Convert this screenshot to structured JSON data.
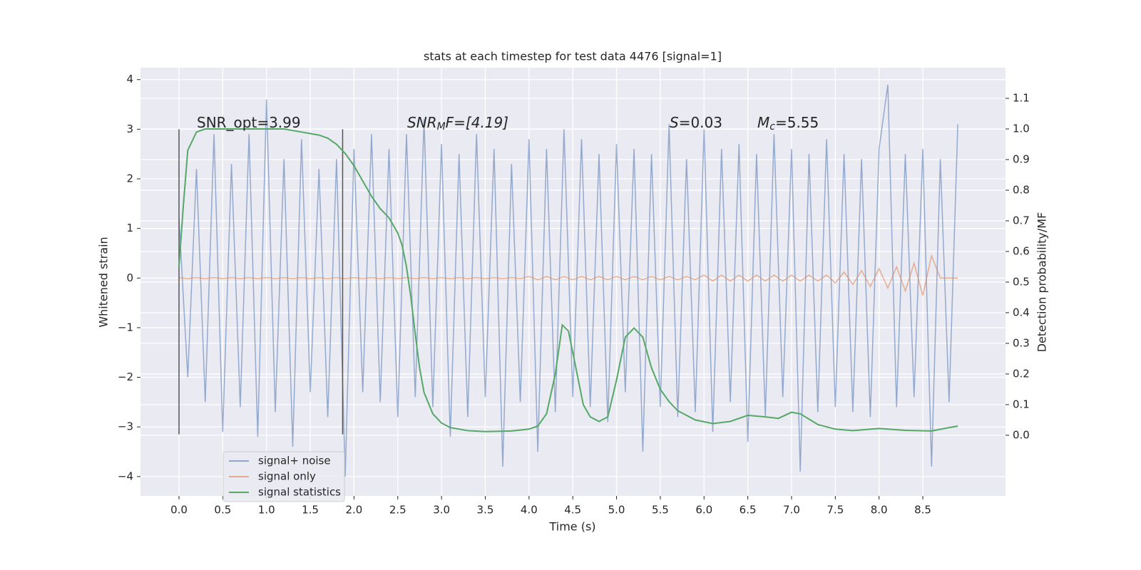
{
  "chart_data": {
    "type": "line",
    "title": "stats at each timestep for test data 4476 [signal=1]",
    "xlabel": "Time (s)",
    "ylabel": "Whitened strain",
    "y2label": "Detection probability/MF",
    "xlim": [
      -0.44,
      9.445
    ],
    "ylim": [
      -4.39,
      4.24
    ],
    "y2lim": [
      -0.198,
      1.2
    ],
    "xticks": [
      {
        "value": 0,
        "label": "0.0"
      },
      {
        "value": 0.5,
        "label": "0.5"
      },
      {
        "value": 1,
        "label": "1.0"
      },
      {
        "value": 1.5,
        "label": "1.5"
      },
      {
        "value": 2,
        "label": "2.0"
      },
      {
        "value": 2.5,
        "label": "2.5"
      },
      {
        "value": 3,
        "label": "3.0"
      },
      {
        "value": 3.5,
        "label": "3.5"
      },
      {
        "value": 4,
        "label": "4.0"
      },
      {
        "value": 4.5,
        "label": "4.5"
      },
      {
        "value": 5,
        "label": "5.0"
      },
      {
        "value": 5.5,
        "label": "5.5"
      },
      {
        "value": 6,
        "label": "6.0"
      },
      {
        "value": 6.5,
        "label": "6.5"
      },
      {
        "value": 7,
        "label": "7.0"
      },
      {
        "value": 7.5,
        "label": "7.5"
      },
      {
        "value": 8,
        "label": "8.0"
      },
      {
        "value": 8.5,
        "label": "8.5"
      }
    ],
    "yticks": [
      {
        "value": -4,
        "label": "−4"
      },
      {
        "value": -3,
        "label": "−3"
      },
      {
        "value": -2,
        "label": "−2"
      },
      {
        "value": -1,
        "label": "−1"
      },
      0,
      1,
      2,
      3,
      4
    ],
    "y2ticks": [
      {
        "value": 0,
        "label": "0.0"
      },
      {
        "value": 0.1,
        "label": "0.1"
      },
      {
        "value": 0.2,
        "label": "0.2"
      },
      {
        "value": 0.3,
        "label": "0.3"
      },
      {
        "value": 0.4,
        "label": "0.4"
      },
      {
        "value": 0.5,
        "label": "0.5"
      },
      {
        "value": 0.6,
        "label": "0.6"
      },
      {
        "value": 0.7,
        "label": "0.7"
      },
      {
        "value": 0.8,
        "label": "0.8"
      },
      {
        "value": 0.9,
        "label": "0.9"
      },
      {
        "value": 1,
        "label": "1.0"
      },
      {
        "value": 1.1,
        "label": "1.1"
      }
    ],
    "grid": true,
    "legend": "lower left",
    "vlines": [
      0,
      1.87
    ],
    "annotations": [
      [
        "SNR_opt=3.99"
      ],
      [
        "SNR",
        "M",
        "F=[4.19]"
      ],
      [
        "S",
        "=0.03"
      ],
      [
        "M",
        "c",
        "=5.55"
      ]
    ],
    "x": [
      0,
      0.1,
      0.2,
      0.3,
      0.4,
      0.5,
      0.6,
      0.7,
      0.8,
      0.9,
      1,
      1.1,
      1.2,
      1.3,
      1.4,
      1.5,
      1.6,
      1.7,
      1.8,
      1.9,
      2,
      2.1,
      2.2,
      2.3,
      2.4,
      2.5,
      2.6,
      2.7,
      2.8,
      2.9,
      3,
      3.1,
      3.2,
      3.3,
      3.4,
      3.5,
      3.6,
      3.7,
      3.8,
      3.9,
      4,
      4.1,
      4.2,
      4.3,
      4.4,
      4.5,
      4.6,
      4.7,
      4.8,
      4.9,
      5,
      5.1,
      5.2,
      5.3,
      5.4,
      5.5,
      5.6,
      5.7,
      5.8,
      5.9,
      6,
      6.1,
      6.2,
      6.3,
      6.4,
      6.5,
      6.6,
      6.7,
      6.8,
      6.9,
      7,
      7.1,
      7.2,
      7.3,
      7.4,
      7.5,
      7.6,
      7.7,
      7.8,
      7.9,
      8,
      8.1,
      8.2,
      8.3,
      8.4,
      8.5,
      8.6,
      8.7,
      8.8,
      8.9
    ],
    "series": [
      {
        "name": "signal+ noise",
        "color": "#4c72b0",
        "values": [
          1.2,
          -2.0,
          2.2,
          -2.5,
          2.9,
          -3.1,
          2.3,
          -2.6,
          2.9,
          -3.2,
          3.6,
          -2.7,
          2.4,
          -3.4,
          2.8,
          -2.3,
          2.2,
          -2.8,
          2.4,
          -4.0,
          2.6,
          -2.3,
          2.9,
          -2.5,
          2.6,
          -2.8,
          2.9,
          -2.4,
          3.2,
          -2.6,
          2.7,
          -3.2,
          2.5,
          -2.8,
          2.9,
          -2.4,
          2.6,
          -3.8,
          2.3,
          -2.5,
          2.8,
          -3.5,
          2.6,
          -2.7,
          3.0,
          -2.4,
          2.8,
          -2.6,
          2.5,
          -2.9,
          2.7,
          -2.3,
          2.6,
          -3.5,
          2.5,
          -2.6,
          3.1,
          -2.8,
          2.4,
          -2.7,
          3.0,
          -3.1,
          2.6,
          -2.5,
          2.7,
          -3.3,
          2.5,
          -2.8,
          2.9,
          -2.4,
          2.6,
          -3.9,
          2.5,
          -2.7,
          2.8,
          -2.6,
          2.5,
          -2.7,
          2.4,
          -2.8,
          2.6,
          3.9,
          -2.6,
          2.5,
          -2.4,
          2.6,
          -3.8,
          2.4,
          -2.5,
          3.1
        ]
      },
      {
        "name": "signal only",
        "color": "#dd8452",
        "values": [
          0.01,
          -0.01,
          0.01,
          -0.01,
          0.01,
          -0.01,
          0.01,
          -0.01,
          0.01,
          -0.01,
          0.01,
          -0.01,
          0.01,
          -0.01,
          0.01,
          -0.01,
          0.01,
          -0.01,
          0.01,
          -0.01,
          0.01,
          -0.01,
          0.01,
          -0.01,
          0.01,
          -0.01,
          0.01,
          -0.01,
          0.01,
          -0.01,
          0.01,
          -0.01,
          0.01,
          -0.01,
          0.01,
          -0.01,
          0.01,
          -0.01,
          0.01,
          -0.01,
          0.03,
          -0.03,
          0.03,
          -0.03,
          0.03,
          -0.03,
          0.03,
          -0.03,
          0.03,
          -0.03,
          0.03,
          -0.03,
          0.03,
          -0.03,
          0.03,
          -0.03,
          0.03,
          -0.03,
          0.03,
          -0.03,
          0.06,
          -0.06,
          0.06,
          -0.06,
          0.06,
          -0.06,
          0.06,
          -0.06,
          0.06,
          -0.06,
          0.06,
          -0.06,
          0.06,
          -0.06,
          0.06,
          -0.1,
          0.12,
          -0.13,
          0.15,
          -0.17,
          0.19,
          -0.2,
          0.23,
          -0.26,
          0.3,
          -0.35,
          0.45,
          0,
          0,
          0
        ]
      },
      {
        "name": "signal statistics",
        "color": "#55a868",
        "axis": "y2",
        "x": [
          0,
          0.05,
          0.1,
          0.2,
          0.3,
          0.5,
          1,
          1.2,
          1.4,
          1.6,
          1.7,
          1.8,
          1.9,
          2,
          2.1,
          2.2,
          2.3,
          2.4,
          2.5,
          2.55,
          2.6,
          2.65,
          2.7,
          2.75,
          2.8,
          2.9,
          3,
          3.1,
          3.3,
          3.5,
          3.8,
          4,
          4.1,
          4.2,
          4.3,
          4.38,
          4.45,
          4.55,
          4.62,
          4.7,
          4.8,
          4.9,
          5,
          5.1,
          5.2,
          5.3,
          5.4,
          5.5,
          5.6,
          5.7,
          5.9,
          6.1,
          6.3,
          6.5,
          6.7,
          6.85,
          7,
          7.1,
          7.3,
          7.5,
          7.7,
          8,
          8.3,
          8.6,
          8.8,
          8.9
        ],
        "values": [
          0.55,
          0.75,
          0.93,
          0.99,
          1.0,
          1.0,
          1.0,
          1.0,
          0.99,
          0.98,
          0.97,
          0.95,
          0.92,
          0.88,
          0.83,
          0.78,
          0.74,
          0.71,
          0.66,
          0.62,
          0.55,
          0.45,
          0.33,
          0.22,
          0.14,
          0.07,
          0.04,
          0.025,
          0.015,
          0.012,
          0.014,
          0.02,
          0.03,
          0.07,
          0.2,
          0.36,
          0.34,
          0.2,
          0.1,
          0.06,
          0.045,
          0.06,
          0.18,
          0.32,
          0.35,
          0.32,
          0.22,
          0.15,
          0.11,
          0.08,
          0.05,
          0.038,
          0.045,
          0.065,
          0.06,
          0.055,
          0.075,
          0.07,
          0.035,
          0.02,
          0.015,
          0.022,
          0.016,
          0.014,
          0.025,
          0.03
        ]
      }
    ]
  }
}
